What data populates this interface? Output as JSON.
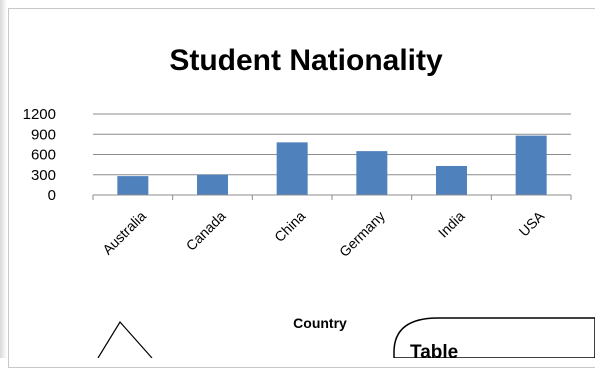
{
  "chart_data": {
    "type": "bar",
    "title": "Student Nationality",
    "xlabel": "Country",
    "ylabel": "",
    "categories": [
      "Australia",
      "Canada",
      "China",
      "Germany",
      "India",
      "USA"
    ],
    "values": [
      280,
      300,
      780,
      650,
      430,
      880
    ],
    "ylim": [
      0,
      1200
    ],
    "yticks": [
      "0",
      "300",
      "600",
      "900",
      "1200"
    ],
    "grid": true,
    "bar_color": "#4f81bd"
  },
  "callout": {
    "text": "Table"
  }
}
